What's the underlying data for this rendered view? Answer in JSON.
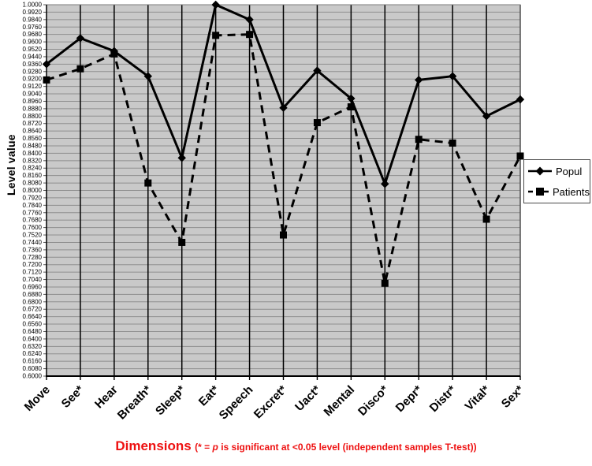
{
  "chart_data": {
    "type": "line",
    "title": "",
    "categories": [
      "Move",
      "See*",
      "Hear",
      "Breath*",
      "Sleep*",
      "Eat*",
      "Speech",
      "Excret*",
      "Uact*",
      "Mental",
      "Disco*",
      "Depr*",
      "Distr*",
      "Vital*",
      "Sex*"
    ],
    "series": [
      {
        "name": "Popul",
        "marker": "diamond",
        "line_style": "solid",
        "values": [
          0.936,
          0.964,
          0.95,
          0.923,
          0.835,
          1.0,
          0.984,
          0.889,
          0.929,
          0.899,
          0.807,
          0.919,
          0.923,
          0.88,
          0.898
        ]
      },
      {
        "name": "Patients",
        "marker": "square",
        "line_style": "dashed",
        "values": [
          0.919,
          0.931,
          0.947,
          0.808,
          0.744,
          0.967,
          0.968,
          0.752,
          0.873,
          0.89,
          0.7,
          0.855,
          0.851,
          0.769,
          0.837
        ]
      }
    ],
    "xlabel": "Dimensions",
    "ylabel": "Level value",
    "ylim": [
      0.6,
      1.0
    ],
    "ytick_step": 0.008,
    "ytick_decimals": 4,
    "grid": true,
    "legend_position": "right",
    "colors": {
      "line": "#000000",
      "plot_bg": "#c9c9c9",
      "grid": "#8f8f8f",
      "caption": "#ee1111"
    }
  },
  "caption": {
    "title": "Dimensions",
    "note_prefix": "(* = ",
    "note_p": "p",
    "note_suffix": " is significant at <0.05 level (independent samples T-test))"
  }
}
